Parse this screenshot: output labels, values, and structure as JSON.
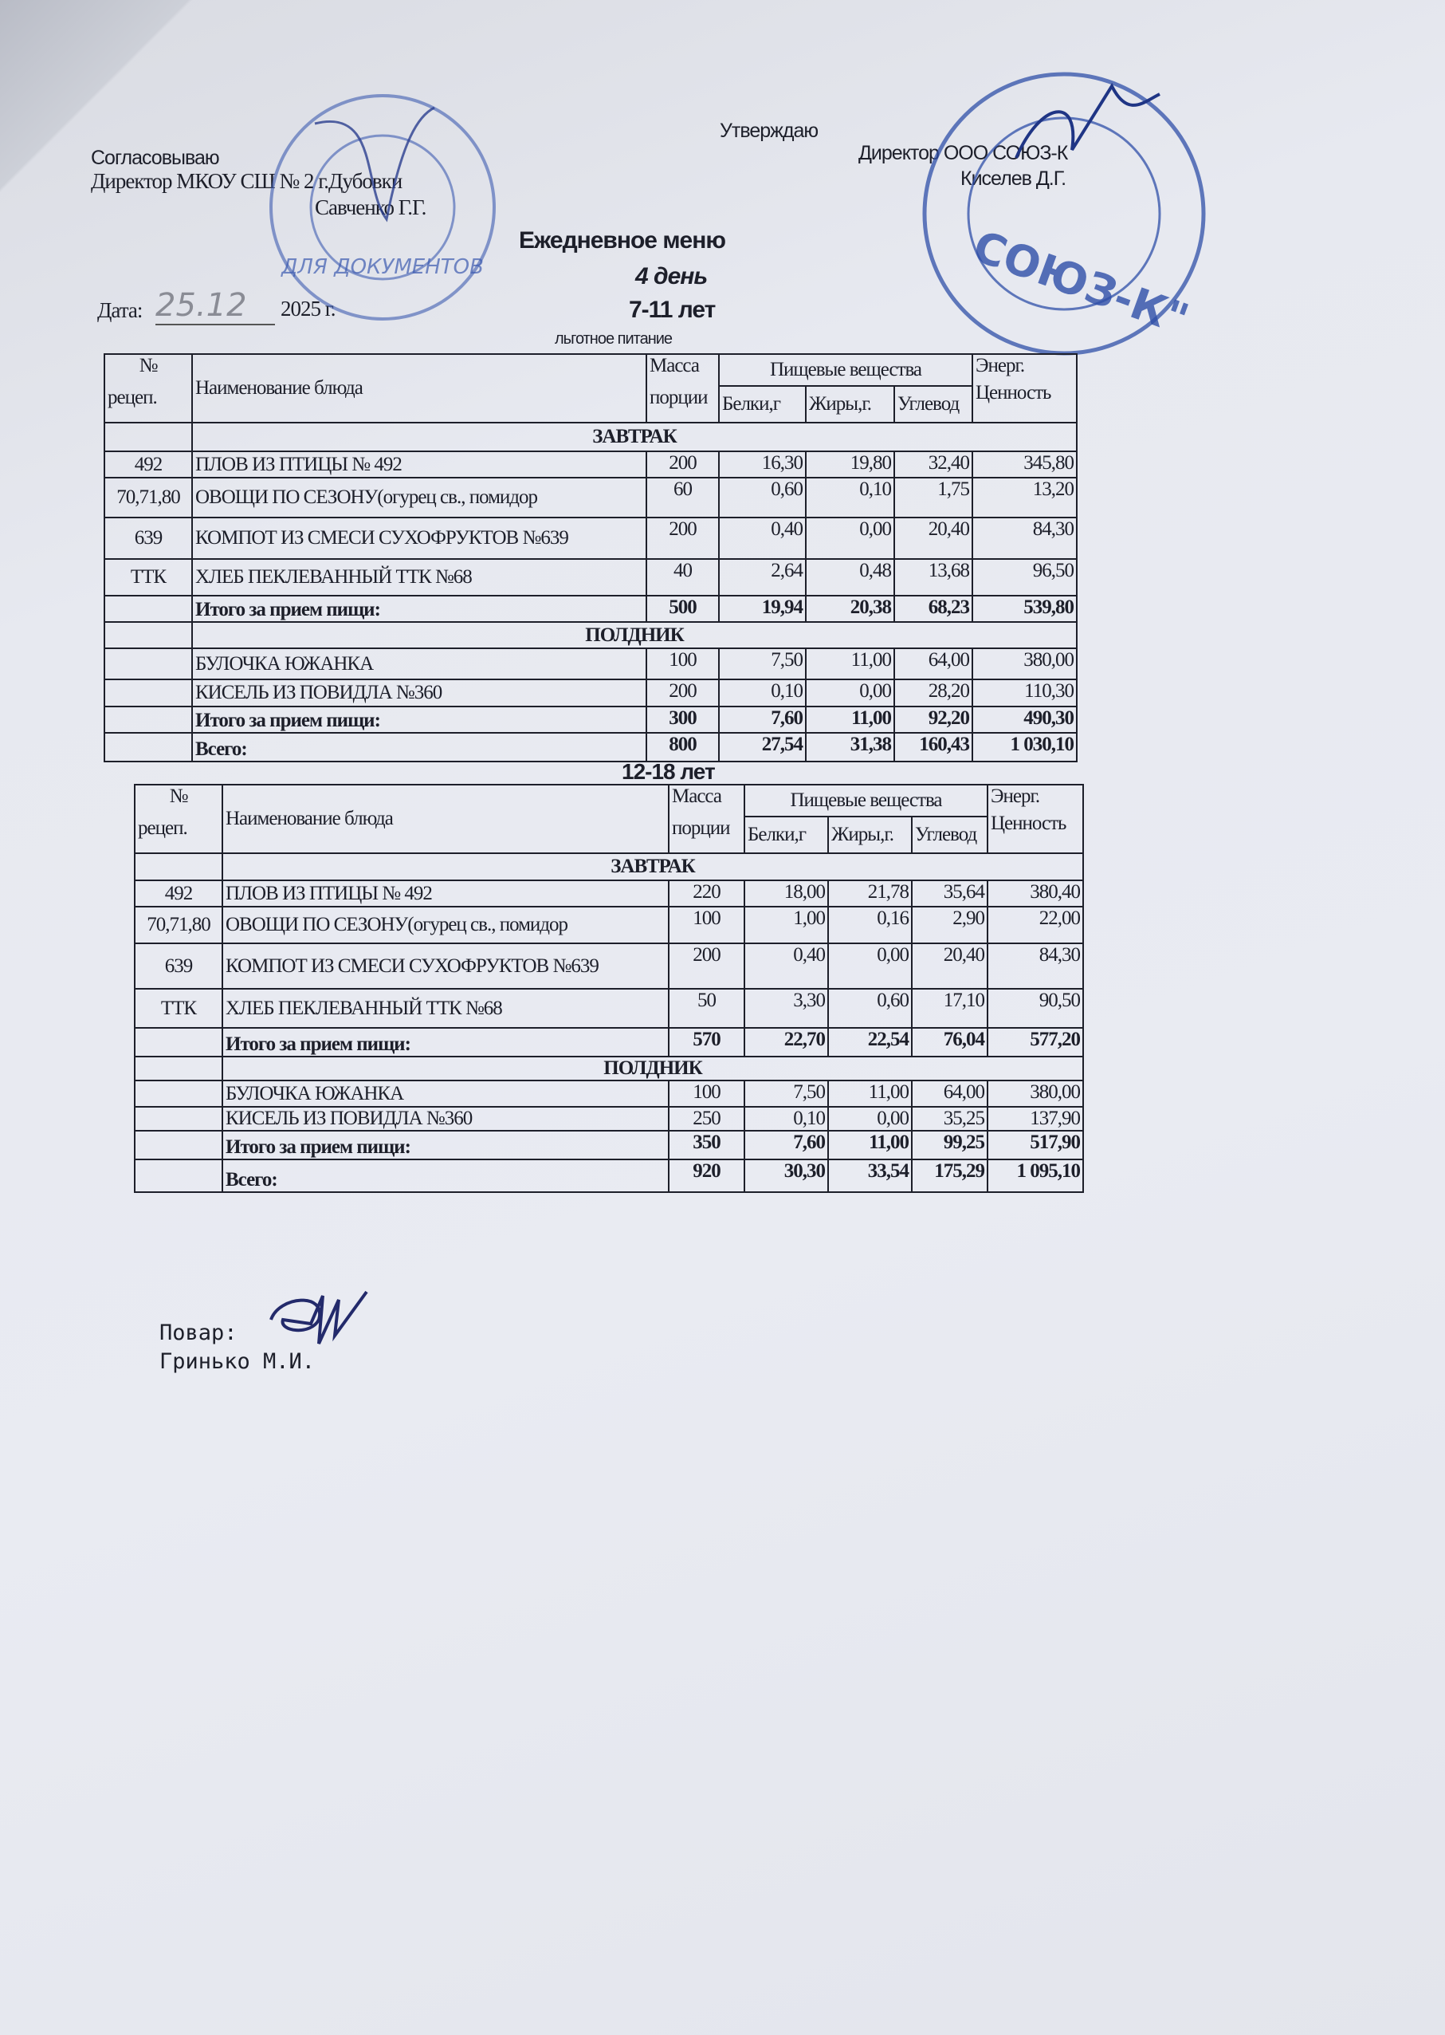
{
  "header": {
    "approve_left_label": "Согласовываю",
    "approve_left_position": "Директор МКОУ СШ № 2 г.Дубовки",
    "approve_left_name": "Савченко Г.Г.",
    "approve_right_label": "Утверждаю",
    "approve_right_position": "Директор ООО СОЮЗ-К",
    "approve_right_name": "Киселев Д.Г.",
    "date_label": "Дата:",
    "date_value": "25.12",
    "date_year": "2025 г.",
    "title": "Ежедневное меню",
    "day": "4 день",
    "age_group_1": "7-11 лет",
    "subtitle": "льготное питание",
    "age_group_2": "12-18 лет"
  },
  "stamps": {
    "left_text": "ДЛЯ ДОКУМЕНТОВ",
    "right_text": "СОЮЗ-К\"",
    "color": "#2f4fa8"
  },
  "columns": {
    "recipe_top": "№",
    "recipe_bottom": "рецеп.",
    "name": "Наименование блюда",
    "mass_top": "Масса",
    "mass_bottom": "порции",
    "nutrients": "Пищевые вещества",
    "protein": "Белки,г",
    "fat": "Жиры,г.",
    "carbs": "Углевод",
    "energy_top": "Энерг.",
    "energy_bottom": "Ценность"
  },
  "table_7_11": [
    {
      "type": "section",
      "label": "ЗАВТРАК"
    },
    {
      "type": "item",
      "recipe": "492",
      "name": "ПЛОВ ИЗ ПТИЦЫ № 492",
      "mass": "200",
      "protein": "16,30",
      "fat": "19,80",
      "carbs": "32,40",
      "energy": "345,80"
    },
    {
      "type": "item",
      "recipe": "70,71,80",
      "name": "ОВОЩИ ПО СЕЗОНУ(огурец св., помидор",
      "mass": "60",
      "protein": "0,60",
      "fat": "0,10",
      "carbs": "1,75",
      "energy": "13,20"
    },
    {
      "type": "item",
      "recipe": "639",
      "name": "КОМПОТ ИЗ СМЕСИ СУХОФРУКТОВ №639",
      "mass": "200",
      "protein": "0,40",
      "fat": "0,00",
      "carbs": "20,40",
      "energy": "84,30"
    },
    {
      "type": "item",
      "recipe": "ТТК",
      "name": "ХЛЕБ ПЕКЛЕВАННЫЙ ТТК №68",
      "mass": "40",
      "protein": "2,64",
      "fat": "0,48",
      "carbs": "13,68",
      "energy": "96,50"
    },
    {
      "type": "total",
      "recipe": "",
      "name": "Итого за прием пищи:",
      "mass": "500",
      "protein": "19,94",
      "fat": "20,38",
      "carbs": "68,23",
      "energy": "539,80"
    },
    {
      "type": "section",
      "label": "ПОЛДНИК"
    },
    {
      "type": "item",
      "recipe": "",
      "name": "БУЛОЧКА ЮЖАНКА",
      "mass": "100",
      "protein": "7,50",
      "fat": "11,00",
      "carbs": "64,00",
      "energy": "380,00"
    },
    {
      "type": "item",
      "recipe": "",
      "name": "КИСЕЛЬ ИЗ ПОВИДЛА №360",
      "mass": "200",
      "protein": "0,10",
      "fat": "0,00",
      "carbs": "28,20",
      "energy": "110,30"
    },
    {
      "type": "total",
      "recipe": "",
      "name": "Итого за прием пищи:",
      "mass": "300",
      "protein": "7,60",
      "fat": "11,00",
      "carbs": "92,20",
      "energy": "490,30"
    },
    {
      "type": "total",
      "recipe": "",
      "name": "Всего:",
      "mass": "800",
      "protein": "27,54",
      "fat": "31,38",
      "carbs": "160,43",
      "energy": "1 030,10"
    }
  ],
  "table_12_18": [
    {
      "type": "section",
      "label": "ЗАВТРАК"
    },
    {
      "type": "item",
      "recipe": "492",
      "name": "ПЛОВ ИЗ ПТИЦЫ № 492",
      "mass": "220",
      "protein": "18,00",
      "fat": "21,78",
      "carbs": "35,64",
      "energy": "380,40"
    },
    {
      "type": "item",
      "recipe": "70,71,80",
      "name": "ОВОЩИ ПО СЕЗОНУ(огурец св., помидор",
      "mass": "100",
      "protein": "1,00",
      "fat": "0,16",
      "carbs": "2,90",
      "energy": "22,00"
    },
    {
      "type": "item",
      "recipe": "639",
      "name": "КОМПОТ ИЗ СМЕСИ СУХОФРУКТОВ №639",
      "mass": "200",
      "protein": "0,40",
      "fat": "0,00",
      "carbs": "20,40",
      "energy": "84,30"
    },
    {
      "type": "item",
      "recipe": "ТТК",
      "name": "ХЛЕБ ПЕКЛЕВАННЫЙ ТТК №68",
      "mass": "50",
      "protein": "3,30",
      "fat": "0,60",
      "carbs": "17,10",
      "energy": "90,50"
    },
    {
      "type": "total",
      "recipe": "",
      "name": "Итого за прием пищи:",
      "mass": "570",
      "protein": "22,70",
      "fat": "22,54",
      "carbs": "76,04",
      "energy": "577,20"
    },
    {
      "type": "section",
      "label": "ПОЛДНИК"
    },
    {
      "type": "item",
      "recipe": "",
      "name": "БУЛОЧКА ЮЖАНКА",
      "mass": "100",
      "protein": "7,50",
      "fat": "11,00",
      "carbs": "64,00",
      "energy": "380,00"
    },
    {
      "type": "item",
      "recipe": "",
      "name": "КИСЕЛЬ ИЗ ПОВИДЛА №360",
      "mass": "250",
      "protein": "0,10",
      "fat": "0,00",
      "carbs": "35,25",
      "energy": "137,90"
    },
    {
      "type": "total",
      "recipe": "",
      "name": "Итого за прием пищи:",
      "mass": "350",
      "protein": "7,60",
      "fat": "11,00",
      "carbs": "99,25",
      "energy": "517,90"
    },
    {
      "type": "total",
      "recipe": "",
      "name": "Всего:",
      "mass": "920",
      "protein": "30,30",
      "fat": "33,54",
      "carbs": "175,29",
      "energy": "1 095,10"
    }
  ],
  "footer": {
    "cook_label": "Повар:",
    "cook_name": "Гринько М.И."
  }
}
